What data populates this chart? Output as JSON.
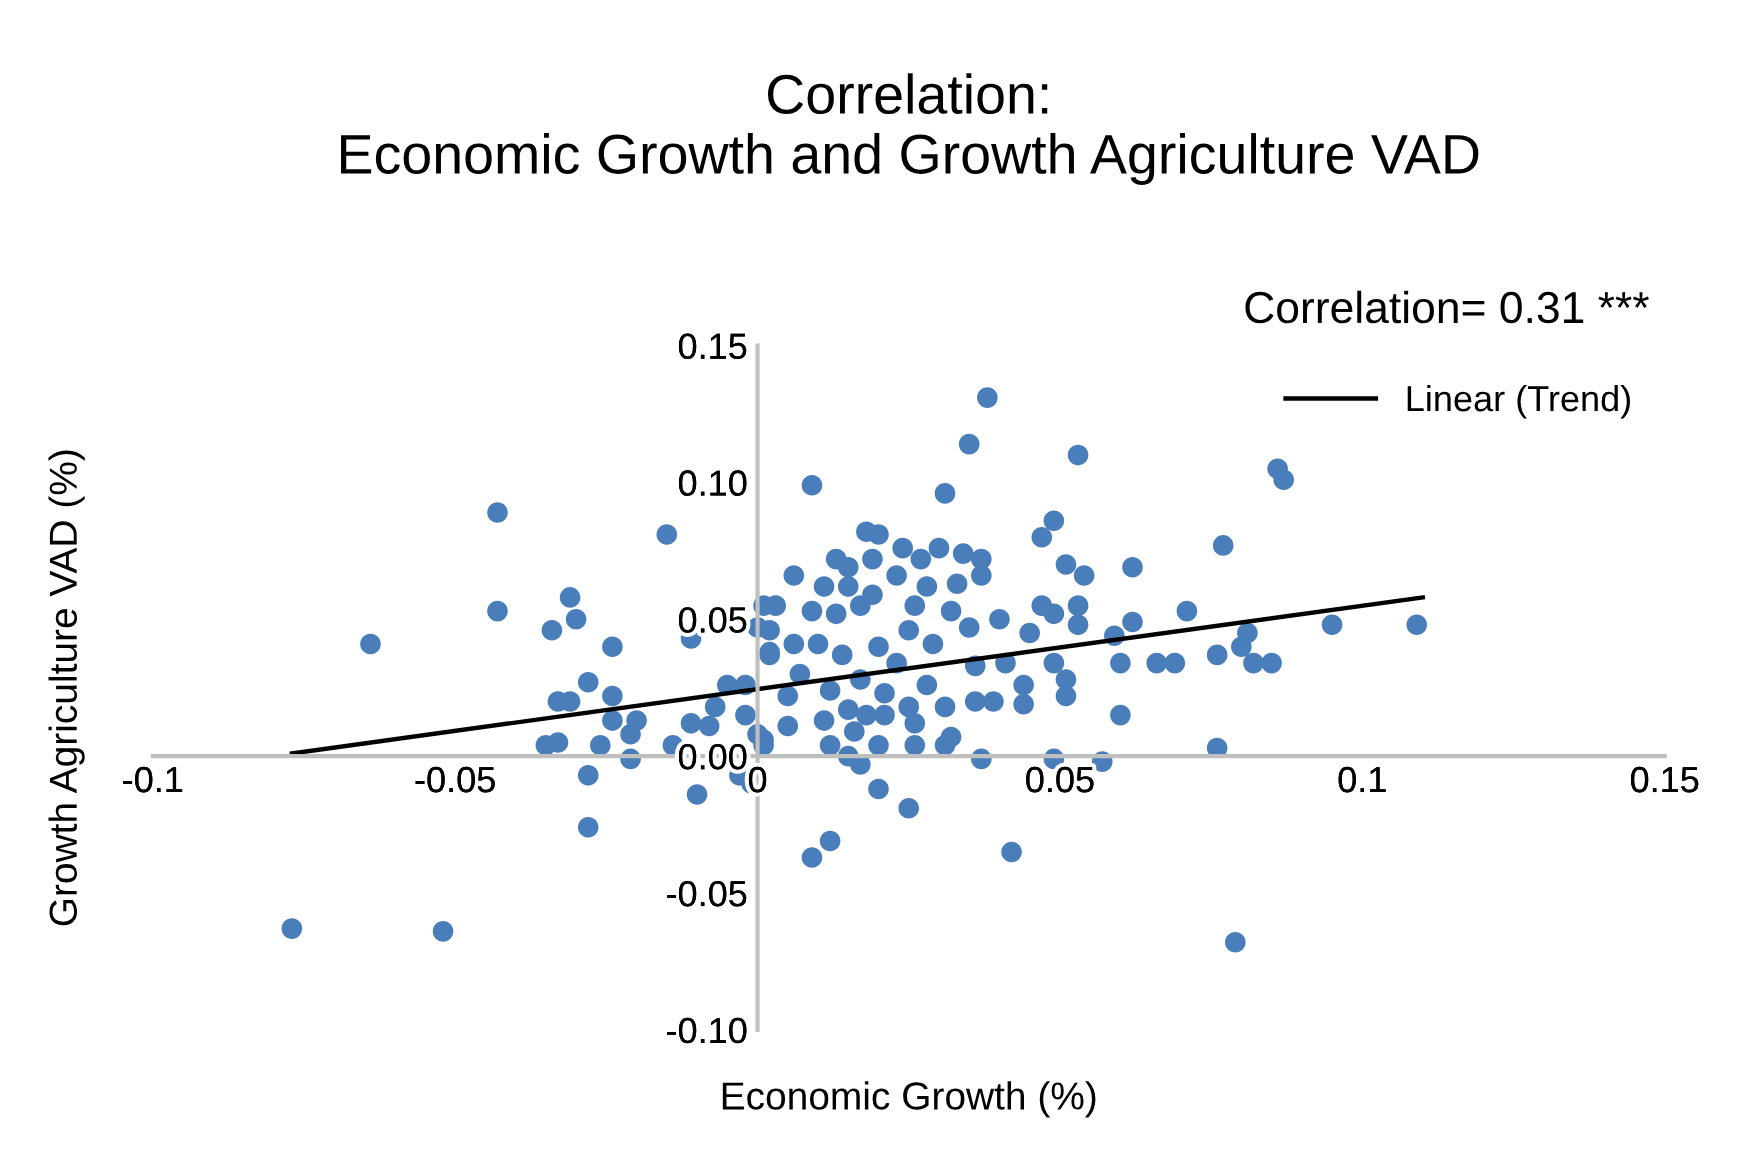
{
  "chart_data": {
    "type": "scatter",
    "title": "Correlation:\nEconomic Growth and Growth Agriculture VAD",
    "xlabel": "Economic Growth (%)",
    "ylabel": "Growth Agriculture VAD (%)",
    "annotations": [
      "Correlation= 0.31 ***"
    ],
    "xlim": [
      -0.1,
      0.15
    ],
    "ylim": [
      -0.1,
      0.15
    ],
    "xticks": [
      -0.1,
      -0.05,
      0,
      0.05,
      0.1,
      0.15
    ],
    "yticks": [
      {
        "value": -0.1,
        "label": "-0.10"
      },
      {
        "value": -0.05,
        "label": "-0.05"
      },
      {
        "value": 0,
        "label": "0.00"
      },
      {
        "value": 0.05,
        "label": "0.05"
      },
      {
        "value": 0.1,
        "label": "0.10"
      },
      {
        "value": 0.15,
        "label": "0.15"
      }
    ],
    "grid": false,
    "legend": "top right",
    "marker": "circle",
    "series": [
      {
        "color": "#4a7ebb",
        "x": [
          -0.064,
          -0.043,
          -0.043,
          -0.015,
          -0.031,
          -0.03,
          -0.034,
          -0.024,
          -0.011,
          -0.028,
          -0.033,
          -0.031,
          -0.024,
          -0.024,
          -0.02,
          -0.021,
          -0.035,
          -0.033,
          -0.026,
          -0.021,
          -0.028,
          -0.014,
          -0.011,
          -0.008,
          -0.005,
          -0.007,
          -0.002,
          0.001,
          0.0,
          0.002,
          -0.002,
          0.0,
          0.001,
          -0.003,
          -0.001,
          -0.01,
          0.038,
          0.035,
          0.053,
          0.009,
          0.031,
          0.086,
          0.087,
          0.049,
          0.047,
          0.077,
          0.018,
          0.02,
          0.024,
          0.03,
          0.034,
          0.037,
          0.013,
          0.019,
          0.027,
          0.015,
          0.051,
          0.054,
          0.062,
          0.037,
          0.006,
          0.023,
          0.011,
          0.015,
          0.028,
          0.033,
          0.019,
          0.026,
          0.032,
          0.009,
          0.003,
          0.013,
          0.017,
          0.047,
          0.053,
          0.071,
          0.035,
          0.04,
          0.053,
          0.062,
          0.095,
          0.109,
          0.081,
          0.08,
          0.076,
          0.059,
          0.049,
          0.045,
          0.006,
          0.025,
          0.029,
          0.02,
          0.01,
          0.014,
          0.002,
          0.023,
          0.036,
          0.041,
          0.049,
          0.06,
          0.066,
          0.069,
          0.082,
          0.085,
          0.007,
          0.017,
          0.028,
          0.044,
          0.051,
          0.012,
          0.021,
          0.005,
          0.051,
          0.036,
          0.039,
          0.044,
          0.025,
          0.031,
          0.015,
          0.018,
          0.06,
          0.011,
          0.021,
          0.026,
          0.005,
          0.016,
          0.032,
          0.012,
          0.02,
          0.026,
          0.031,
          0.076,
          0.015,
          0.017,
          0.037,
          0.049,
          0.057,
          0.02,
          0.001,
          0.002,
          -0.077,
          -0.052,
          0.079,
          -0.028,
          0.009,
          0.012,
          0.042,
          0.025
        ],
        "values": [
          0.041,
          0.089,
          0.053,
          0.081,
          0.058,
          0.05,
          0.046,
          0.04,
          0.043,
          0.027,
          0.02,
          0.02,
          0.022,
          0.013,
          0.013,
          0.008,
          0.004,
          0.005,
          0.004,
          -0.001,
          -0.007,
          0.004,
          0.012,
          0.011,
          0.026,
          0.018,
          0.026,
          0.055,
          0.047,
          0.038,
          0.015,
          0.008,
          0.004,
          -0.007,
          -0.01,
          -0.014,
          0.131,
          0.114,
          0.11,
          0.099,
          0.096,
          0.105,
          0.101,
          0.086,
          0.08,
          0.077,
          0.082,
          0.081,
          0.076,
          0.076,
          0.074,
          0.072,
          0.072,
          0.072,
          0.072,
          0.069,
          0.07,
          0.066,
          0.069,
          0.066,
          0.066,
          0.066,
          0.062,
          0.062,
          0.062,
          0.063,
          0.059,
          0.055,
          0.053,
          0.053,
          0.055,
          0.052,
          0.055,
          0.055,
          0.055,
          0.053,
          0.047,
          0.05,
          0.048,
          0.049,
          0.048,
          0.048,
          0.045,
          0.04,
          0.037,
          0.044,
          0.052,
          0.045,
          0.041,
          0.046,
          0.041,
          0.04,
          0.041,
          0.037,
          0.037,
          0.034,
          0.033,
          0.034,
          0.034,
          0.034,
          0.034,
          0.034,
          0.034,
          0.034,
          0.03,
          0.028,
          0.026,
          0.026,
          0.028,
          0.024,
          0.023,
          0.022,
          0.022,
          0.02,
          0.02,
          0.019,
          0.018,
          0.018,
          0.017,
          0.015,
          0.015,
          0.013,
          0.015,
          0.012,
          0.011,
          0.009,
          0.007,
          0.004,
          0.004,
          0.004,
          0.004,
          0.003,
          0.0,
          -0.003,
          -0.001,
          -0.001,
          -0.002,
          -0.012,
          0.006,
          0.046,
          -0.063,
          -0.064,
          -0.068,
          -0.026,
          -0.037,
          -0.031,
          -0.035,
          -0.019
        ]
      },
      {
        "type": "line",
        "name": "Linear (Trend)",
        "color": "#000000",
        "marker": "none",
        "line_style": "solid",
        "x": [
          -0.077,
          0.11
        ],
        "values": [
          0.001,
          0.058
        ]
      }
    ]
  }
}
